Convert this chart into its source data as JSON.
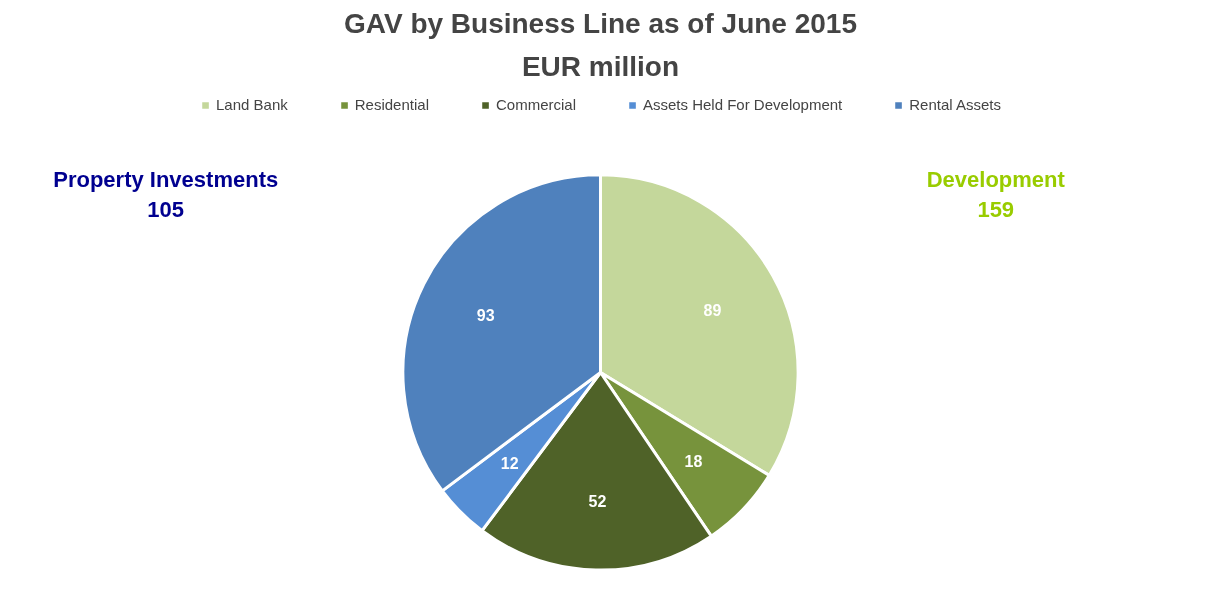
{
  "chart_data": {
    "type": "pie",
    "title": "GAV by Business Line as of June 2015",
    "subtitle": "EUR million",
    "categories": [
      "Land Bank",
      "Residential",
      "Commercial",
      "Assets Held For Development",
      "Rental Assets"
    ],
    "values": [
      89,
      18,
      52,
      12,
      93
    ],
    "colors": [
      "#c4d79b",
      "#77933c",
      "#4f6228",
      "#558ed5",
      "#4f81bd"
    ],
    "data_labels": true,
    "legend": "top",
    "annotations": [
      "Property Investments\n105",
      "Development\n159"
    ]
  }
}
